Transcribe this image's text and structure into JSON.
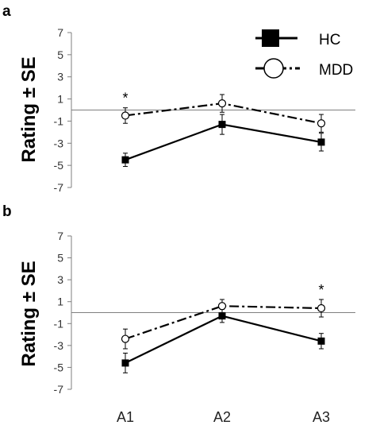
{
  "chart_data": [
    {
      "type": "line",
      "panel_label": "a",
      "ylabel": "Rating ± SE",
      "ylim": [
        -7,
        7
      ],
      "yticks": [
        "7",
        "5",
        "3",
        "1",
        "-1",
        "-3",
        "-5",
        "-7"
      ],
      "categories": [
        "A1",
        "A2",
        "A3"
      ],
      "grid": false,
      "legend_position": "top-right",
      "series": [
        {
          "name": "HC",
          "values": [
            -4.5,
            -1.3,
            -2.9
          ],
          "errors": [
            0.6,
            0.9,
            0.8
          ],
          "marker": "filled-square",
          "line_style": "solid",
          "color": "#000000"
        },
        {
          "name": "MDD",
          "values": [
            -0.5,
            0.6,
            -1.2
          ],
          "errors": [
            0.7,
            0.8,
            0.8
          ],
          "marker": "open-circle",
          "line_style": "dash-dot",
          "color": "#000000"
        }
      ],
      "annotations": [
        {
          "text": "*",
          "category": "A1"
        }
      ]
    },
    {
      "type": "line",
      "panel_label": "b",
      "ylabel": "Rating ± SE",
      "ylim": [
        -7,
        7
      ],
      "yticks": [
        "7",
        "5",
        "3",
        "1",
        "-1",
        "-3",
        "-5",
        "-7"
      ],
      "categories": [
        "A1",
        "A2",
        "A3"
      ],
      "grid": false,
      "series": [
        {
          "name": "HC",
          "values": [
            -4.6,
            -0.3,
            -2.6
          ],
          "errors": [
            0.9,
            0.6,
            0.7
          ],
          "marker": "filled-square",
          "line_style": "solid",
          "color": "#000000"
        },
        {
          "name": "MDD",
          "values": [
            -2.4,
            0.6,
            0.4
          ],
          "errors": [
            0.9,
            0.6,
            0.8
          ],
          "marker": "open-circle",
          "line_style": "dash-dot",
          "color": "#000000"
        }
      ],
      "annotations": [
        {
          "text": "*",
          "category": "A3"
        }
      ]
    }
  ]
}
